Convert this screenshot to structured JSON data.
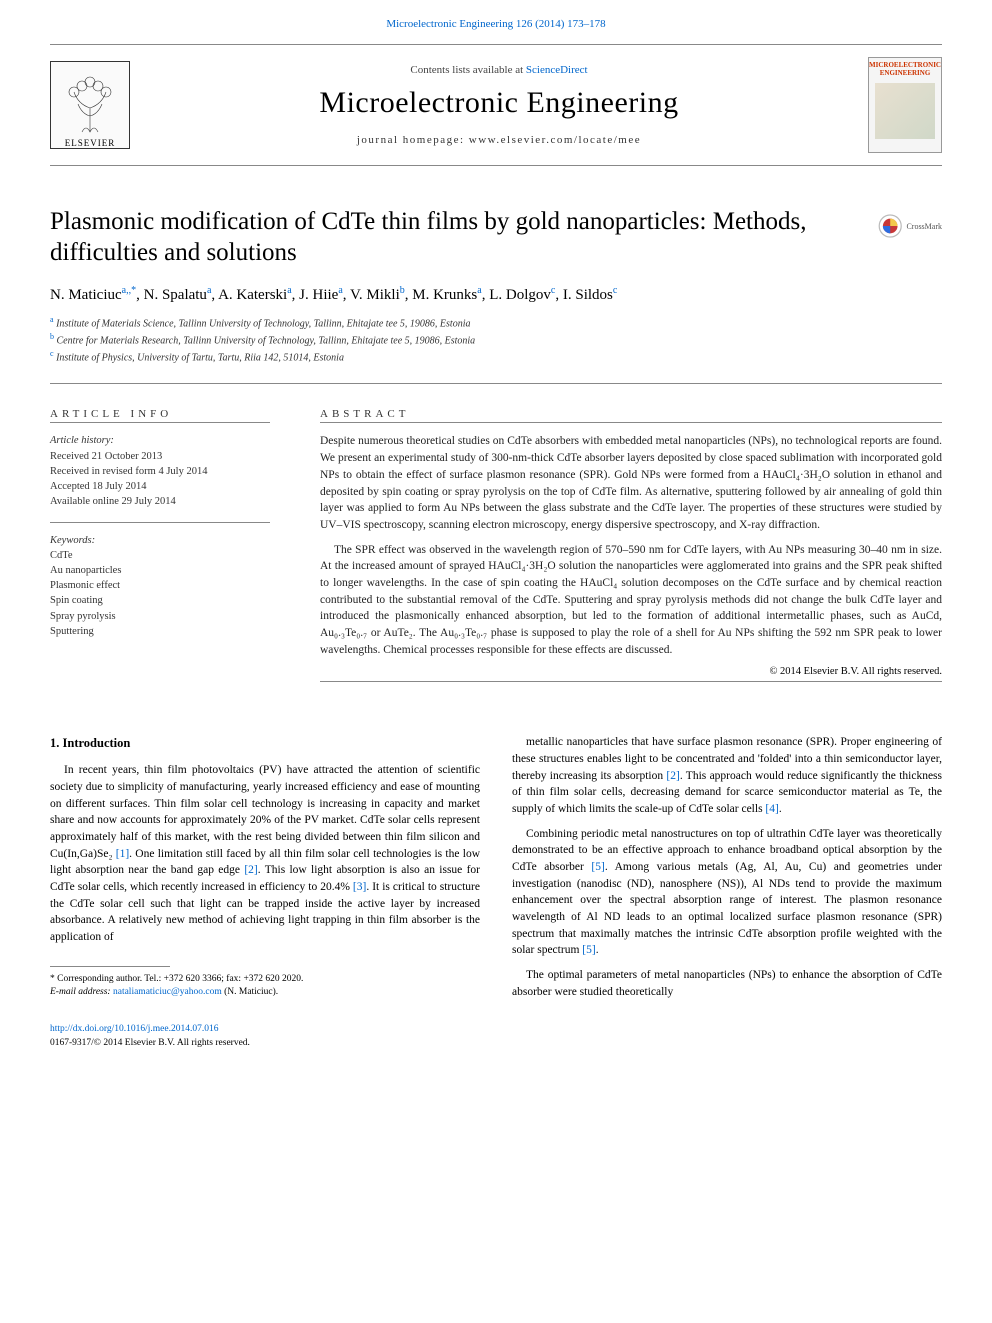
{
  "top_link": {
    "text": "Microelectronic Engineering 126 (2014) 173–178",
    "href": "#"
  },
  "masthead": {
    "elsevier_label": "ELSEVIER",
    "contents_prefix": "Contents lists available at ",
    "contents_link": "ScienceDirect",
    "journal_name": "Microelectronic Engineering",
    "homepage": "journal homepage: www.elsevier.com/locate/mee",
    "cover_brand": "MICROELECTRONIC ENGINEERING"
  },
  "crossmark_label": "CrossMark",
  "title": "Plasmonic modification of CdTe thin films by gold nanoparticles: Methods, difficulties and solutions",
  "authors_html": "N. Maticiuc",
  "authors": [
    {
      "name": "N. Maticiuc",
      "aff": "a,*"
    },
    {
      "name": "N. Spalatu",
      "aff": "a"
    },
    {
      "name": "A. Katerski",
      "aff": "a"
    },
    {
      "name": "J. Hiie",
      "aff": "a"
    },
    {
      "name": "V. Mikli",
      "aff": "b"
    },
    {
      "name": "M. Krunks",
      "aff": "a"
    },
    {
      "name": "L. Dolgov",
      "aff": "c"
    },
    {
      "name": "I. Sildos",
      "aff": "c"
    }
  ],
  "affiliations": [
    {
      "sup": "a",
      "text": "Institute of Materials Science, Tallinn University of Technology, Tallinn, Ehitajate tee 5, 19086, Estonia"
    },
    {
      "sup": "b",
      "text": "Centre for Materials Research, Tallinn University of Technology, Tallinn, Ehitajate tee 5, 19086, Estonia"
    },
    {
      "sup": "c",
      "text": "Institute of Physics, University of Tartu, Tartu, Riia 142, 51014, Estonia"
    }
  ],
  "article_info": {
    "head": "ARTICLE INFO",
    "history_label": "Article history:",
    "history": [
      "Received 21 October 2013",
      "Received in revised form 4 July 2014",
      "Accepted 18 July 2014",
      "Available online 29 July 2014"
    ],
    "keywords_label": "Keywords:",
    "keywords": [
      "CdTe",
      "Au nanoparticles",
      "Plasmonic effect",
      "Spin coating",
      "Spray pyrolysis",
      "Sputtering"
    ]
  },
  "abstract": {
    "head": "ABSTRACT",
    "paragraphs": [
      "Despite numerous theoretical studies on CdTe absorbers with embedded metal nanoparticles (NPs), no technological reports are found. We present an experimental study of 300-nm-thick CdTe absorber layers deposited by close spaced sublimation with incorporated gold NPs to obtain the effect of surface plasmon resonance (SPR). Gold NPs were formed from a HAuCl₄·3H₂O solution in ethanol and deposited by spin coating or spray pyrolysis on the top of CdTe film. As alternative, sputtering followed by air annealing of gold thin layer was applied to form Au NPs between the glass substrate and the CdTe layer. The properties of these structures were studied by UV–VIS spectroscopy, scanning electron microscopy, energy dispersive spectroscopy, and X-ray diffraction.",
      "The SPR effect was observed in the wavelength region of 570–590 nm for CdTe layers, with Au NPs measuring 30–40 nm in size. At the increased amount of sprayed HAuCl₄·3H₂O solution the nanoparticles were agglomerated into grains and the SPR peak shifted to longer wavelengths. In the case of spin coating the HAuCl₄ solution decomposes on the CdTe surface and by chemical reaction contributed to the substantial removal of the CdTe. Sputtering and spray pyrolysis methods did not change the bulk CdTe layer and introduced the plasmonically enhanced absorption, but led to the formation of additional intermetallic phases, such as AuCd, Au₀.₃Te₀.₇ or AuTe₂. The Au₀.₃Te₀.₇ phase is supposed to play the role of a shell for Au NPs shifting the 592 nm SPR peak to lower wavelengths. Chemical processes responsible for these effects are discussed."
    ],
    "copyright": "© 2014 Elsevier B.V. All rights reserved."
  },
  "body": {
    "intro_head": "1. Introduction",
    "left": [
      "In recent years, thin film photovoltaics (PV) have attracted the attention of scientific society due to simplicity of manufacturing, yearly increased efficiency and ease of mounting on different surfaces. Thin film solar cell technology is increasing in capacity and market share and now accounts for approximately 20% of the PV market. CdTe solar cells represent approximately half of this market, with the rest being divided between thin film silicon and Cu(In,Ga)Se₂ [1]. One limitation still faced by all thin film solar cell technologies is the low light absorption near the band gap edge [2]. This low light absorption is also an issue for CdTe solar cells, which recently increased in efficiency to 20.4% [3]. It is critical to structure the CdTe solar cell such that light can be trapped inside the active layer by increased absorbance. A relatively new method of achieving light trapping in thin film absorber is the application of"
    ],
    "right": [
      "metallic nanoparticles that have surface plasmon resonance (SPR). Proper engineering of these structures enables light to be concentrated and 'folded' into a thin semiconductor layer, thereby increasing its absorption [2]. This approach would reduce significantly the thickness of thin film solar cells, decreasing demand for scarce semiconductor material as Te, the supply of which limits the scale-up of CdTe solar cells [4].",
      "Combining periodic metal nanostructures on top of ultrathin CdTe layer was theoretically demonstrated to be an effective approach to enhance broadband optical absorption by the CdTe absorber [5]. Among various metals (Ag, Al, Au, Cu) and geometries under investigation (nanodisc (ND), nanosphere (NS)), Al NDs tend to provide the maximum enhancement over the spectral absorption range of interest. The plasmon resonance wavelength of Al ND leads to an optimal localized surface plasmon resonance (SPR) spectrum that maximally matches the intrinsic CdTe absorption profile weighted with the solar spectrum [5].",
      "The optimal parameters of metal nanoparticles (NPs) to enhance the absorption of CdTe absorber were studied theoretically"
    ],
    "refs": {
      "r1": "[1]",
      "r2": "[2]",
      "r3": "[3]",
      "r4": "[4]",
      "r5": "[5]"
    }
  },
  "footnote": {
    "star": "*",
    "corr": "Corresponding author. Tel.: +372 620 3366; fax: +372 620 2020.",
    "email_label": "E-mail address:",
    "email": "nataliamaticiuc@yahoo.com",
    "email_suffix": "(N. Maticiuc)."
  },
  "footer": {
    "doi": "http://dx.doi.org/10.1016/j.mee.2014.07.016",
    "issn_line": "0167-9317/© 2014 Elsevier B.V. All rights reserved."
  },
  "colors": {
    "link": "#0066cc",
    "text": "#000000",
    "muted": "#333333",
    "rule": "#888888",
    "cover_brand": "#cc3300"
  }
}
